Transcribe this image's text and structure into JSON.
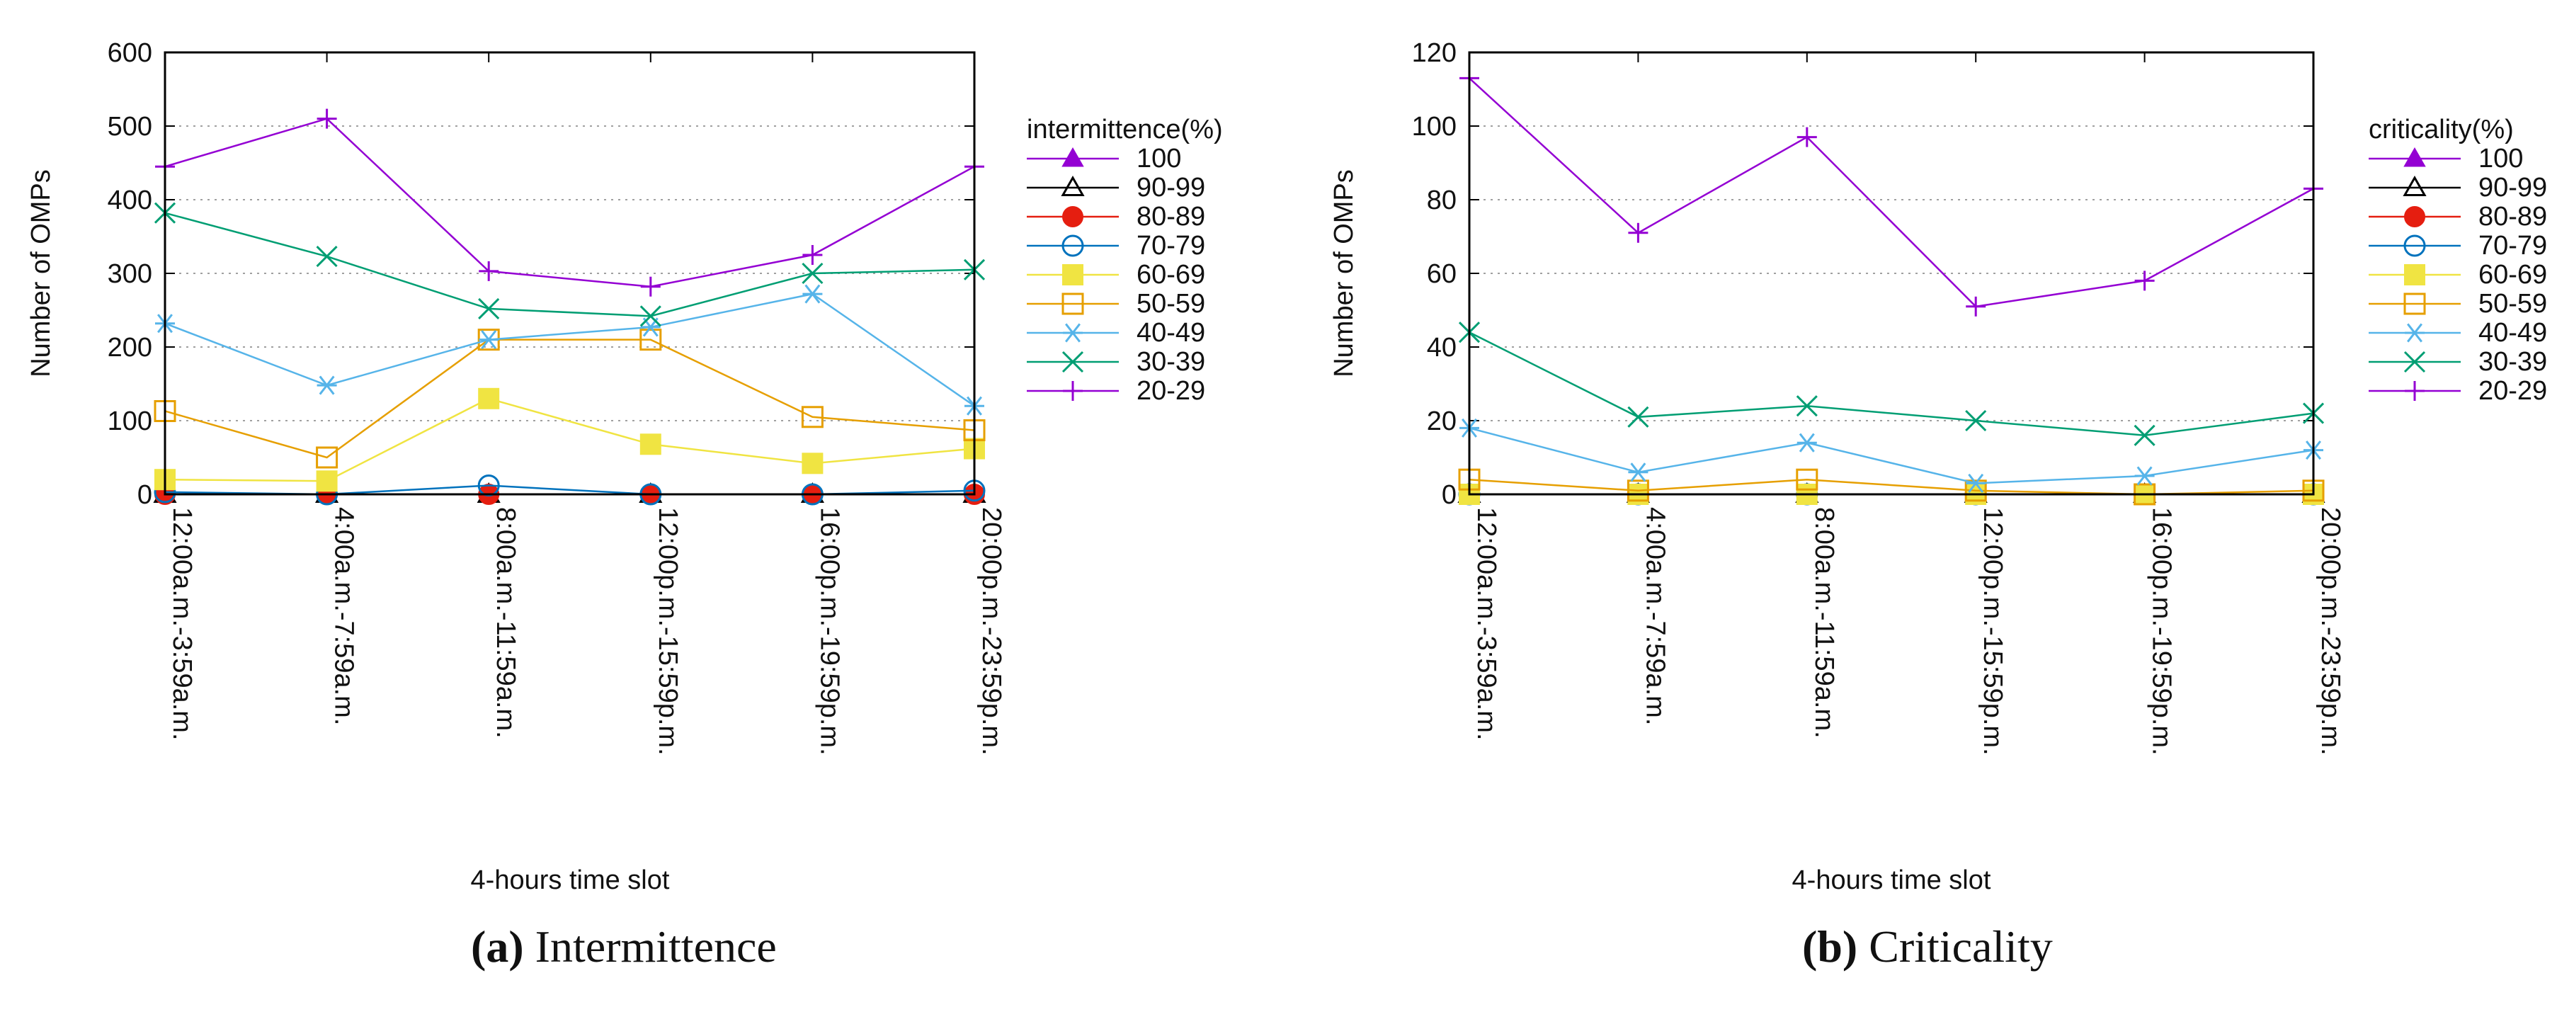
{
  "colors": {
    "s100": "#9400d3",
    "s90_99": "#000000",
    "s80_89": "#e51e10",
    "s70_79": "#0072bd",
    "s60_69": "#f0e442",
    "s50_59": "#e69f00",
    "s40_49": "#56b4e9",
    "s30_39": "#009e73",
    "s20_29": "#9400d3"
  },
  "captions": {
    "a_tag": "(a)",
    "a_text": "Intermittence",
    "b_tag": "(b)",
    "b_text": "Criticality"
  },
  "chart_data": [
    {
      "type": "line",
      "id": "a",
      "title": "",
      "xlabel": "4-hours time slot",
      "ylabel": "Number of OMPs",
      "ylim": [
        0,
        600
      ],
      "yticks": [
        0,
        100,
        200,
        300,
        400,
        500,
        600
      ],
      "grid": true,
      "legend_title": "intermittence(%)",
      "legend_position": "right",
      "categories": [
        "12:00a.m.-3:59a.m.",
        "4:00a.m.-7:59a.m.",
        "8:00a.m.-11:59a.m.",
        "12:00p.m.-15:59p.m.",
        "16:00p.m.-19:59p.m.",
        "20:00p.m.-23:59p.m."
      ],
      "series": [
        {
          "name": "100",
          "marker": "triangle-filled",
          "color": "#9400d3",
          "values": [
            0,
            0,
            0,
            0,
            0,
            0
          ]
        },
        {
          "name": "90-99",
          "marker": "triangle-open",
          "color": "#000000",
          "values": [
            0,
            0,
            0,
            0,
            0,
            0
          ]
        },
        {
          "name": "80-89",
          "marker": "circle-filled",
          "color": "#e51e10",
          "values": [
            0,
            0,
            0,
            0,
            0,
            0
          ]
        },
        {
          "name": "70-79",
          "marker": "circle-open",
          "color": "#0072bd",
          "values": [
            3,
            0,
            12,
            0,
            0,
            5
          ]
        },
        {
          "name": "60-69",
          "marker": "square-filled",
          "color": "#f0e442",
          "values": [
            20,
            18,
            130,
            68,
            42,
            62
          ]
        },
        {
          "name": "50-59",
          "marker": "square-open",
          "color": "#e69f00",
          "values": [
            113,
            50,
            210,
            210,
            105,
            87
          ]
        },
        {
          "name": "40-49",
          "marker": "asterisk",
          "color": "#56b4e9",
          "values": [
            232,
            148,
            210,
            227,
            272,
            120
          ]
        },
        {
          "name": "30-39",
          "marker": "x",
          "color": "#009e73",
          "values": [
            382,
            323,
            252,
            242,
            300,
            305
          ]
        },
        {
          "name": "20-29",
          "marker": "plus",
          "color": "#9400d3",
          "values": [
            445,
            510,
            303,
            282,
            325,
            445
          ]
        }
      ]
    },
    {
      "type": "line",
      "id": "b",
      "title": "",
      "xlabel": "4-hours time slot",
      "ylabel": "Number of OMPs",
      "ylim": [
        0,
        120
      ],
      "yticks": [
        0,
        20,
        40,
        60,
        80,
        100,
        120
      ],
      "grid": true,
      "legend_title": "criticality(%)",
      "legend_position": "right",
      "categories": [
        "12:00a.m.-3:59a.m.",
        "4:00a.m.-7:59a.m.",
        "8:00a.m.-11:59a.m.",
        "12:00p.m.-15:59p.m.",
        "16:00p.m.-19:59p.m.",
        "20:00p.m.-23:59p.m."
      ],
      "series": [
        {
          "name": "100",
          "marker": "triangle-filled",
          "color": "#9400d3",
          "values": [
            0,
            0,
            0,
            0,
            0,
            0
          ]
        },
        {
          "name": "90-99",
          "marker": "triangle-open",
          "color": "#000000",
          "values": [
            0,
            0,
            0,
            0,
            0,
            0
          ]
        },
        {
          "name": "80-89",
          "marker": "circle-filled",
          "color": "#e51e10",
          "values": [
            0,
            0,
            0,
            0,
            0,
            0
          ]
        },
        {
          "name": "70-79",
          "marker": "circle-open",
          "color": "#0072bd",
          "values": [
            0,
            0,
            0,
            0,
            0,
            0
          ]
        },
        {
          "name": "60-69",
          "marker": "square-filled",
          "color": "#f0e442",
          "values": [
            0,
            0,
            0,
            0,
            0,
            0
          ]
        },
        {
          "name": "50-59",
          "marker": "square-open",
          "color": "#e69f00",
          "values": [
            4,
            1,
            4,
            1,
            0,
            1
          ]
        },
        {
          "name": "40-49",
          "marker": "asterisk",
          "color": "#56b4e9",
          "values": [
            18,
            6,
            14,
            3,
            5,
            12
          ]
        },
        {
          "name": "30-39",
          "marker": "x",
          "color": "#009e73",
          "values": [
            44,
            21,
            24,
            20,
            16,
            22
          ]
        },
        {
          "name": "20-29",
          "marker": "plus",
          "color": "#9400d3",
          "values": [
            113,
            71,
            97,
            51,
            58,
            83
          ]
        }
      ]
    }
  ]
}
